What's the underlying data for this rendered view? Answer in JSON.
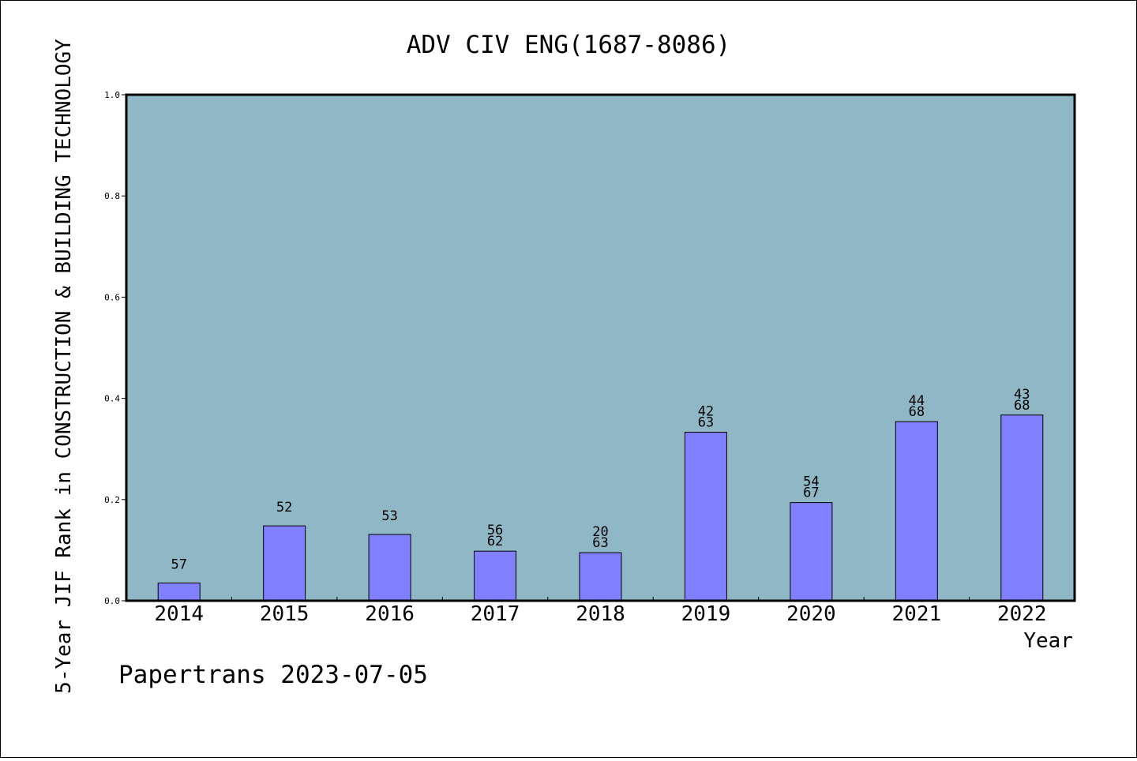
{
  "chart_data": {
    "type": "bar",
    "title": "ADV CIV ENG(1687-8086)",
    "xlabel": "Year",
    "ylabel": "5-Year JIF Rank in CONSTRUCTION & BUILDING TECHNOLOGY",
    "ylim": [
      0,
      1.0
    ],
    "yticks": [
      "0.0",
      "0.2",
      "0.4",
      "0.6",
      "0.8",
      "1.0"
    ],
    "grid": false,
    "categories": [
      "2014",
      "2015",
      "2016",
      "2017",
      "2018",
      "2019",
      "2020",
      "2021",
      "2022"
    ],
    "values": [
      0.035,
      0.148,
      0.131,
      0.098,
      0.095,
      0.333,
      0.194,
      0.354,
      0.367
    ],
    "bar_labels": [
      [
        "57"
      ],
      [
        "52"
      ],
      [
        "53"
      ],
      [
        "56",
        "62"
      ],
      [
        "20",
        "63"
      ],
      [
        "42",
        "63"
      ],
      [
        "54",
        "67"
      ],
      [
        "44",
        "68"
      ],
      [
        "43",
        "68"
      ]
    ],
    "colors": {
      "plot_background": "#8fb7c5",
      "bar_fill": "#8080ff",
      "bar_edge": "#000000"
    }
  },
  "footer": {
    "text": "Papertrans 2023-07-05"
  }
}
